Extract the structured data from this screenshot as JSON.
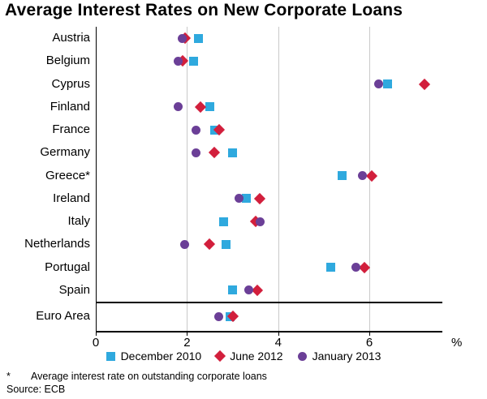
{
  "title": "Average Interest Rates on New Corporate Loans",
  "chart_data": {
    "type": "scatter",
    "orientation": "horizontal-dot-plot",
    "categories": [
      "Austria",
      "Belgium",
      "Cyprus",
      "Finland",
      "France",
      "Germany",
      "Greece*",
      "Ireland",
      "Italy",
      "Netherlands",
      "Portugal",
      "Spain",
      "Euro Area"
    ],
    "series": [
      {
        "name": "December 2010",
        "marker": "square",
        "color": "#2FA9DE",
        "values": [
          2.25,
          2.15,
          6.4,
          2.5,
          2.6,
          3.0,
          5.4,
          3.3,
          2.8,
          2.85,
          5.15,
          3.0,
          2.95
        ]
      },
      {
        "name": "June 2012",
        "marker": "diamond",
        "color": "#D21F3C",
        "values": [
          1.95,
          1.9,
          7.2,
          2.3,
          2.7,
          2.6,
          6.05,
          3.6,
          3.5,
          2.5,
          5.9,
          3.55,
          3.0
        ]
      },
      {
        "name": "January 2013",
        "marker": "circle",
        "color": "#6B3F97",
        "values": [
          1.9,
          1.8,
          6.2,
          1.8,
          2.2,
          2.2,
          5.85,
          3.15,
          3.6,
          1.95,
          5.7,
          3.35,
          2.7
        ]
      }
    ],
    "xlabel": "%",
    "xlim": [
      0,
      7.6
    ],
    "xticks": [
      0,
      2,
      4,
      6
    ],
    "gridlines": [
      2,
      4,
      6
    ],
    "separator_before_category": "Euro Area",
    "legend_position": "bottom",
    "grid_color": "#c9c9c9"
  },
  "footnote": {
    "marker": "*",
    "text": "Average interest rate on outstanding corporate loans"
  },
  "source": "Source: ECB"
}
